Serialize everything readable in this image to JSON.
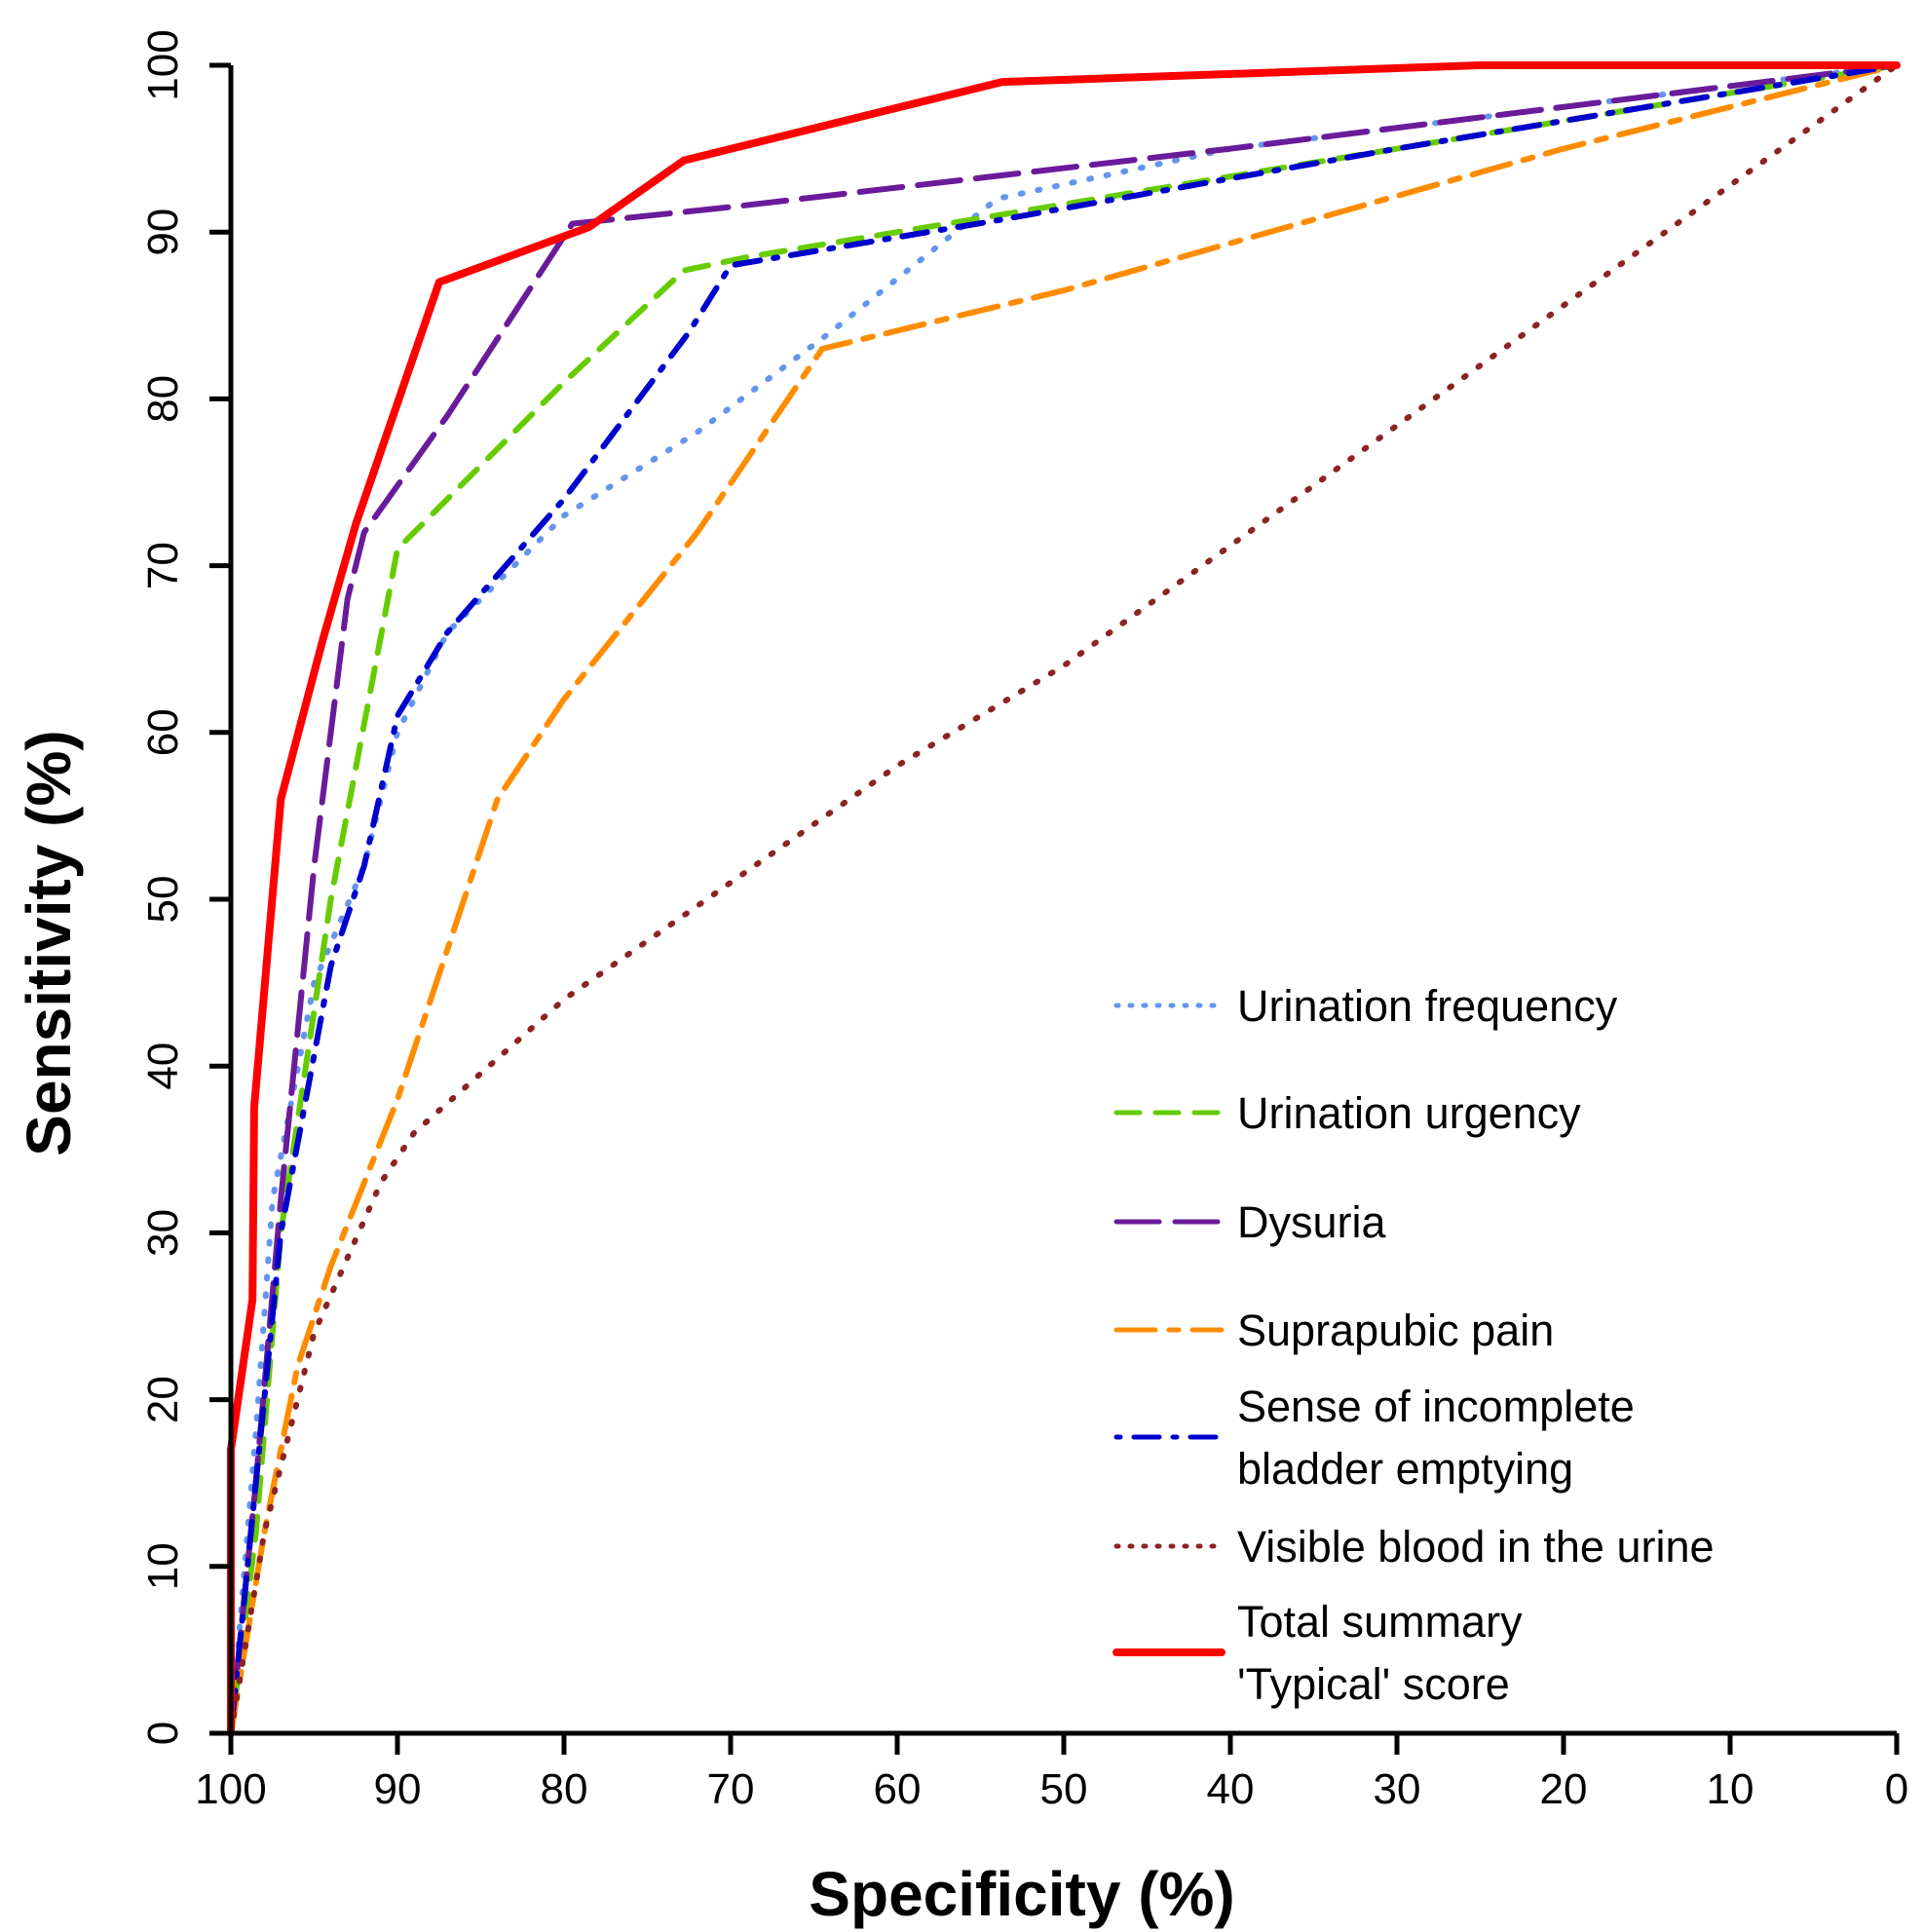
{
  "chart_data": {
    "type": "line",
    "xlabel": "Specificity (%)",
    "ylabel": "Sensitivity (%)",
    "xlim": [
      100,
      0
    ],
    "ylim": [
      0,
      100
    ],
    "x_reversed": true,
    "grid": false,
    "legend_position": "bottom-right",
    "xticks": [
      "100",
      "90",
      "80",
      "70",
      "60",
      "50",
      "40",
      "30",
      "20",
      "10",
      "0"
    ],
    "yticks": [
      "0",
      "10",
      "20",
      "30",
      "40",
      "50",
      "60",
      "70",
      "80",
      "90",
      "100"
    ],
    "series": [
      {
        "name": "Urination frequency",
        "color": "#6495ED",
        "style": "dotted",
        "points": [
          [
            100,
            0
          ],
          [
            98.5,
            18
          ],
          [
            97.5,
            32
          ],
          [
            95,
            45
          ],
          [
            92,
            52
          ],
          [
            90,
            60
          ],
          [
            87,
            66
          ],
          [
            80,
            73
          ],
          [
            72,
            78
          ],
          [
            64,
            84
          ],
          [
            59,
            88
          ],
          [
            54,
            92
          ],
          [
            40,
            95
          ],
          [
            0,
            100
          ]
        ]
      },
      {
        "name": "Urination urgency",
        "color": "#66CC00",
        "style": "dashed",
        "points": [
          [
            100,
            0
          ],
          [
            98.5,
            12
          ],
          [
            97,
            30
          ],
          [
            94,
            50
          ],
          [
            90,
            71
          ],
          [
            87,
            74
          ],
          [
            80,
            81
          ],
          [
            72.8,
            87.7
          ],
          [
            69,
            88.5
          ],
          [
            54,
            91
          ],
          [
            0,
            100
          ]
        ]
      },
      {
        "name": "Dysuria",
        "color": "#6A1B9A",
        "style": "longdash",
        "points": [
          [
            100,
            0
          ],
          [
            98.5,
            15
          ],
          [
            97,
            32
          ],
          [
            95,
            52
          ],
          [
            93,
            68
          ],
          [
            92,
            72
          ],
          [
            87,
            79
          ],
          [
            79.5,
            90.5
          ],
          [
            70,
            91.5
          ],
          [
            40,
            95
          ],
          [
            0,
            100
          ]
        ]
      },
      {
        "name": "Suprapubic pain",
        "color": "#FF8C00",
        "style": "twodash",
        "points": [
          [
            100,
            0
          ],
          [
            98,
            12
          ],
          [
            96,
            22
          ],
          [
            94,
            28
          ],
          [
            90,
            38
          ],
          [
            87,
            47
          ],
          [
            84,
            56
          ],
          [
            80,
            62
          ],
          [
            72,
            72
          ],
          [
            64.5,
            83
          ],
          [
            50,
            86.5
          ],
          [
            20,
            95
          ],
          [
            0,
            100
          ]
        ]
      },
      {
        "name": "Sense of incomplete\nbladder emptying",
        "label_lines": [
          "Sense of incomplete",
          "bladder emptying"
        ],
        "color": "#0000CD",
        "style": "dotdash",
        "points": [
          [
            100,
            0
          ],
          [
            99,
            10
          ],
          [
            97,
            30
          ],
          [
            94,
            46
          ],
          [
            92,
            52
          ],
          [
            90,
            61
          ],
          [
            87,
            66
          ],
          [
            80,
            74
          ],
          [
            72.5,
            84
          ],
          [
            70,
            88
          ],
          [
            54,
            90.7
          ],
          [
            30,
            95
          ],
          [
            0,
            100
          ]
        ]
      },
      {
        "name": "Visible blood in the urine",
        "color": "#8B2323",
        "style": "dotted",
        "points": [
          [
            100,
            0
          ],
          [
            98,
            12
          ],
          [
            95,
            24
          ],
          [
            91,
            33
          ],
          [
            89,
            36
          ],
          [
            80,
            44
          ],
          [
            70,
            51
          ],
          [
            60,
            58
          ],
          [
            50,
            64
          ],
          [
            0,
            100
          ]
        ]
      },
      {
        "name": "Total summary\n'Typical' score",
        "label_lines": [
          "Total summary",
          " 'Typical' score"
        ],
        "color": "#FF0000",
        "style": "solid",
        "points": [
          [
            100,
            0
          ],
          [
            100,
            17
          ],
          [
            98.7,
            26
          ],
          [
            98.6,
            37.5
          ],
          [
            97,
            56
          ],
          [
            94.5,
            65.5
          ],
          [
            92.5,
            72.5
          ],
          [
            87.5,
            87
          ],
          [
            78.5,
            90.3
          ],
          [
            72.8,
            94.3
          ],
          [
            53.7,
            99
          ],
          [
            25,
            100
          ],
          [
            0,
            100
          ]
        ]
      }
    ]
  }
}
